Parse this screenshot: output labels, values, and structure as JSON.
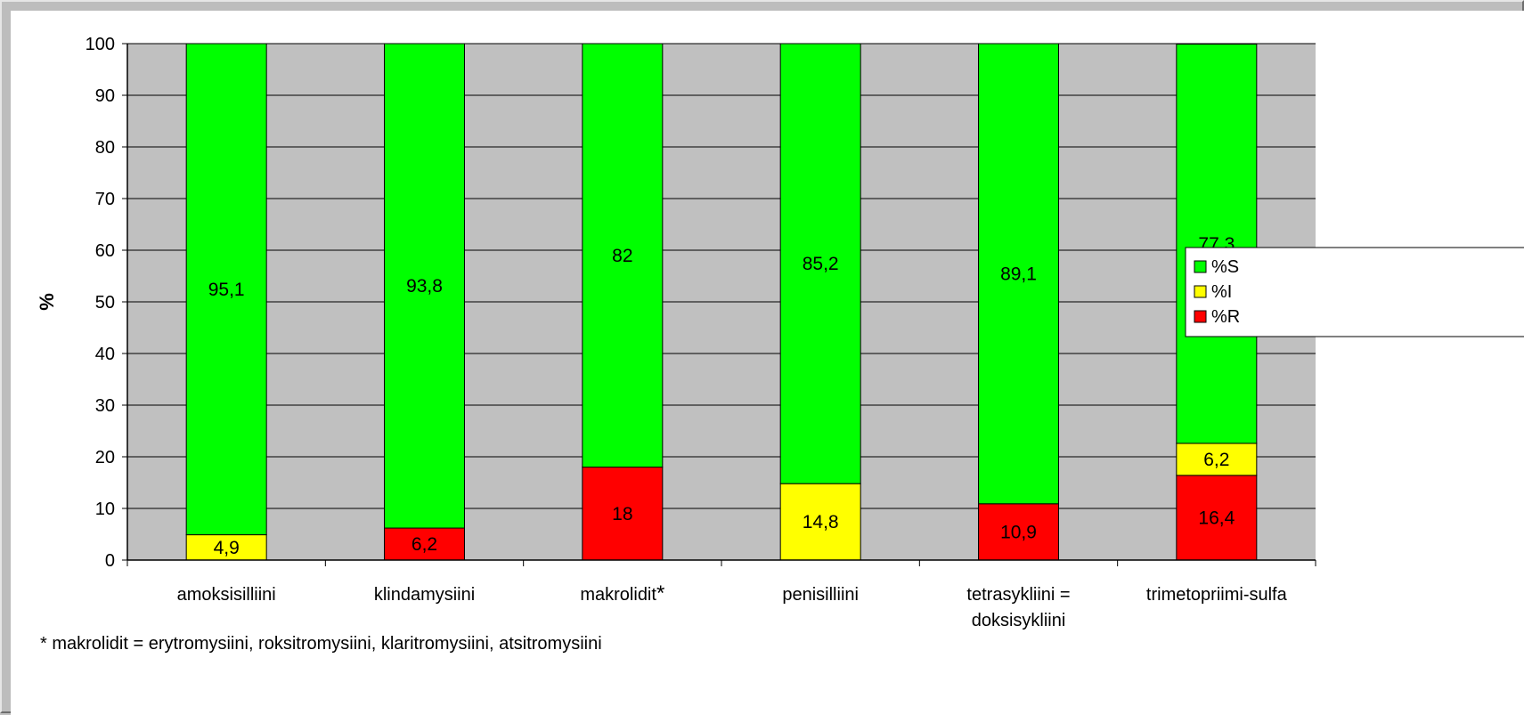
{
  "chart_data": {
    "type": "bar",
    "stacked": true,
    "ylabel": "%",
    "xlabel": "",
    "ylim": [
      0,
      100
    ],
    "yticks": [
      0,
      10,
      20,
      30,
      40,
      50,
      60,
      70,
      80,
      90,
      100
    ],
    "grid": true,
    "legend_position": "right",
    "categories": [
      [
        "amoksisilliini"
      ],
      [
        "klindamysiini"
      ],
      [
        "makrolidit",
        "*"
      ],
      [
        "penisilliini"
      ],
      [
        "tetrasykliini =",
        "doksisykliini"
      ],
      [
        "trimetopriimi-sulfa"
      ]
    ],
    "series": [
      {
        "name": "%R",
        "color": "#ff0000",
        "values": [
          0,
          6.2,
          18,
          0,
          10.9,
          16.4
        ],
        "labels": [
          "",
          "6,2",
          "18",
          "",
          "10,9",
          "16,4"
        ]
      },
      {
        "name": "%I",
        "color": "#ffff00",
        "values": [
          4.9,
          0,
          0,
          14.8,
          0,
          6.2
        ],
        "labels": [
          "4,9",
          "",
          "",
          "14,8",
          "",
          "6,2"
        ]
      },
      {
        "name": "%S",
        "color": "#00ff00",
        "values": [
          95.1,
          93.8,
          82,
          85.2,
          89.1,
          77.3
        ],
        "labels": [
          "95,1",
          "93,8",
          "82",
          "85,2",
          "89,1",
          "77,3"
        ]
      }
    ],
    "legend_order": [
      "%S",
      "%I",
      "%R"
    ],
    "footnote": "* makrolidit = erytromysiini, roksitromysiini, klaritromysiini, atsitromysiini"
  }
}
